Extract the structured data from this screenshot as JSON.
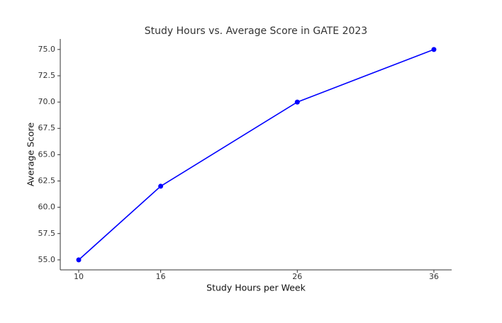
{
  "chart_data": {
    "type": "line",
    "title": "Study Hours vs. Average Score in GATE 2023",
    "x_label": "Study Hours per Week",
    "y_label": "Average Score",
    "x": [
      10,
      16,
      26,
      36
    ],
    "series": [
      {
        "name": "Average Score",
        "color": "#0000ff",
        "values": [
          55,
          62,
          70,
          75
        ]
      }
    ],
    "xlim": [
      8.65,
      37.3
    ],
    "ylim": [
      54.05,
      76.0
    ],
    "xticks": [
      10,
      16,
      26,
      36
    ],
    "yticks": [
      {
        "value": 55,
        "label": "55.0"
      },
      {
        "value": 57.5,
        "label": "57.5"
      },
      {
        "value": 60,
        "label": "60.0"
      },
      {
        "value": 62.5,
        "label": "62.5"
      },
      {
        "value": 65,
        "label": "65.0"
      },
      {
        "value": 67.5,
        "label": "67.5"
      },
      {
        "value": 70,
        "label": "70.0"
      },
      {
        "value": 72.5,
        "label": "72.5"
      },
      {
        "value": 75,
        "label": "75.0"
      }
    ],
    "grid": false
  }
}
